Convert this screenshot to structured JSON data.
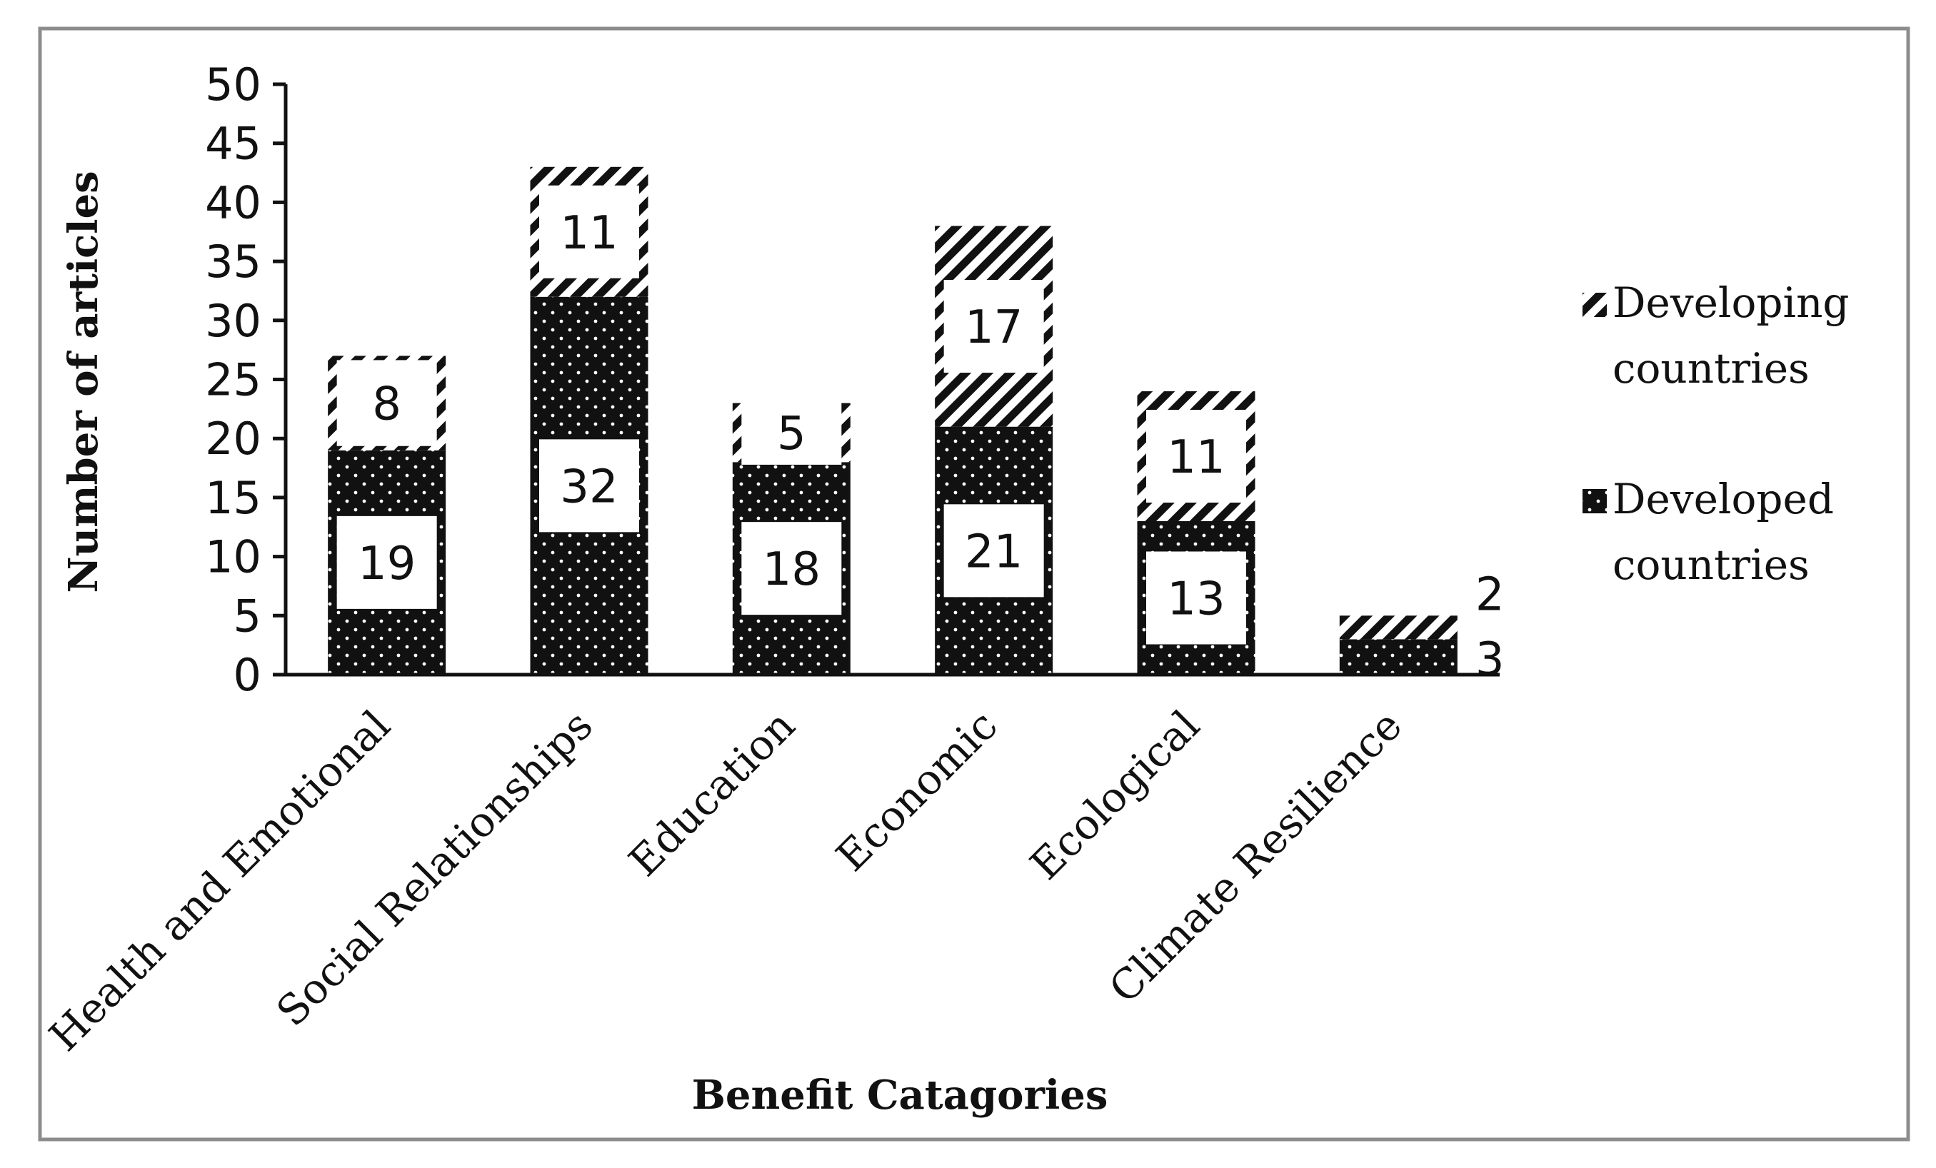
{
  "chart_data": {
    "type": "bar",
    "stacked": true,
    "title": "",
    "xlabel": "Benefit Catagories",
    "ylabel": "Number of articles",
    "ylim": [
      0,
      50
    ],
    "y_ticks": [
      "0",
      "5",
      "10",
      "15",
      "20",
      "25",
      "30",
      "35",
      "40",
      "45",
      "50"
    ],
    "grid": false,
    "legend_position": "right",
    "categories": [
      "Health and Emotional",
      "Social Relationships",
      "Education",
      "Economic",
      "Ecological",
      "Climate Resilience"
    ],
    "series": [
      {
        "name": "Developed countries",
        "pattern": "dots",
        "values": [
          19,
          32,
          18,
          21,
          13,
          3
        ],
        "labels": [
          "19",
          "32",
          "18",
          "21",
          "13",
          "3"
        ]
      },
      {
        "name": "Developing countries",
        "pattern": "diagonal-hatch",
        "values": [
          8,
          11,
          5,
          17,
          11,
          2
        ],
        "labels": [
          "8",
          "11",
          "5",
          "17",
          "11",
          "2"
        ]
      }
    ],
    "legend": {
      "developing": [
        "Developing",
        "countries"
      ],
      "developed": [
        "Developed",
        "countries"
      ]
    },
    "colors": {
      "ink": "#111111",
      "frame": "#8c8c8c",
      "background": "#ffffff"
    }
  }
}
